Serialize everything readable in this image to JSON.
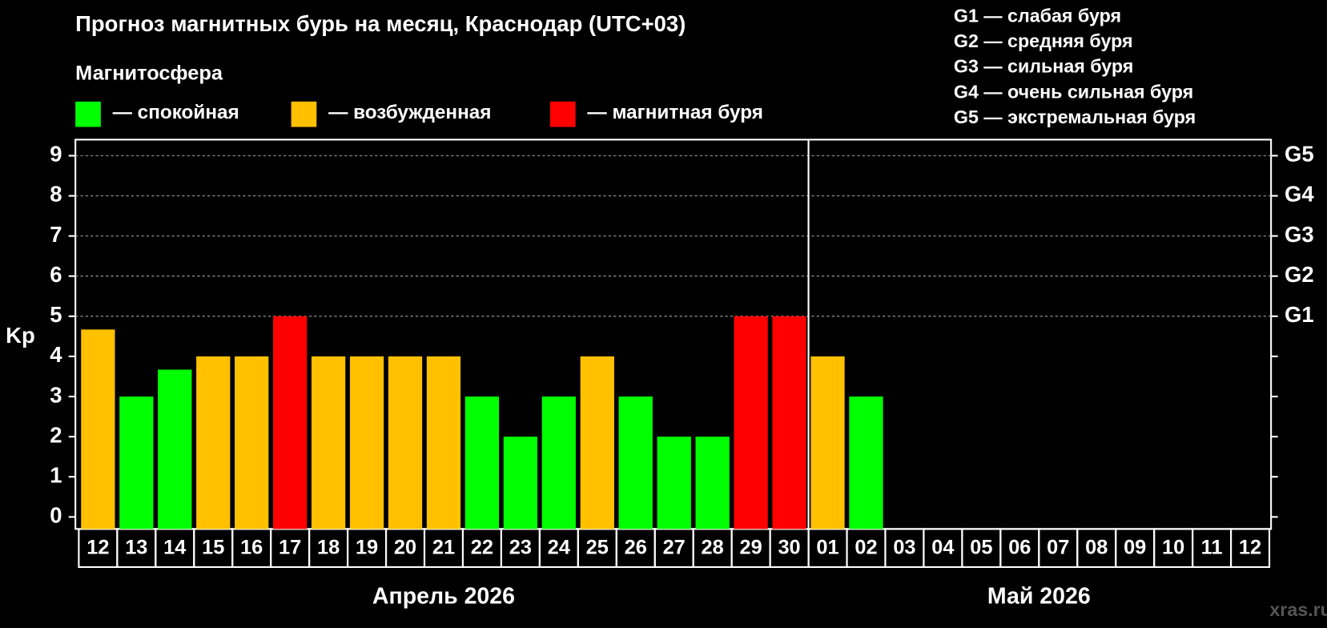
{
  "chart_data": {
    "type": "bar",
    "title": "Прогноз магнитных бурь на месяц, Краснодар (UTC+03)",
    "legend_title": "Магнитосфера",
    "legend": [
      {
        "name": "— спокойная",
        "color": "#00ff00"
      },
      {
        "name": "— возбужденная",
        "color": "#ffc000"
      },
      {
        "name": "— магнитная буря",
        "color": "#ff0000"
      }
    ],
    "storm_scale": [
      "G1 — слабая буря",
      "G2 — средняя буря",
      "G3 — сильная буря",
      "G4 — очень сильная буря",
      "G5 — экстремальная буря"
    ],
    "y_label": "Kp",
    "categories": [
      "12",
      "13",
      "14",
      "15",
      "16",
      "17",
      "18",
      "19",
      "20",
      "21",
      "22",
      "23",
      "24",
      "25",
      "26",
      "27",
      "28",
      "29",
      "30",
      "01",
      "02",
      "03",
      "04",
      "05",
      "06",
      "07",
      "08",
      "09",
      "10",
      "11",
      "12"
    ],
    "month_labels": [
      "Апрель 2026",
      "Май 2026"
    ],
    "values": [
      4.67,
      3,
      3.67,
      4,
      4,
      5,
      4,
      4,
      4,
      4,
      3,
      2,
      3,
      4,
      3,
      2,
      2,
      5,
      5,
      4,
      3,
      null,
      null,
      null,
      null,
      null,
      null,
      null,
      null,
      null,
      null
    ],
    "colors": [
      "#ffc000",
      "#00ff00",
      "#00ff00",
      "#ffc000",
      "#ffc000",
      "#ff0000",
      "#ffc000",
      "#ffc000",
      "#ffc000",
      "#ffc000",
      "#00ff00",
      "#00ff00",
      "#00ff00",
      "#ffc000",
      "#00ff00",
      "#00ff00",
      "#00ff00",
      "#ff0000",
      "#ff0000",
      "#ffc000",
      "#00ff00",
      null,
      null,
      null,
      null,
      null,
      null,
      null,
      null,
      null,
      null
    ],
    "ylim": [
      -0.3,
      9.4
    ],
    "yticks": [
      0,
      1,
      2,
      3,
      4,
      5,
      6,
      7,
      8,
      9
    ],
    "y2lim": [
      -0.3,
      9.4
    ],
    "y2ticks": [
      {
        "value": 5,
        "label": "G1"
      },
      {
        "value": 6,
        "label": "G2"
      },
      {
        "value": 7,
        "label": "G3"
      },
      {
        "value": 8,
        "label": "G4"
      },
      {
        "value": 9,
        "label": "G5"
      }
    ],
    "grid": true,
    "watermark": "xras.ru"
  }
}
